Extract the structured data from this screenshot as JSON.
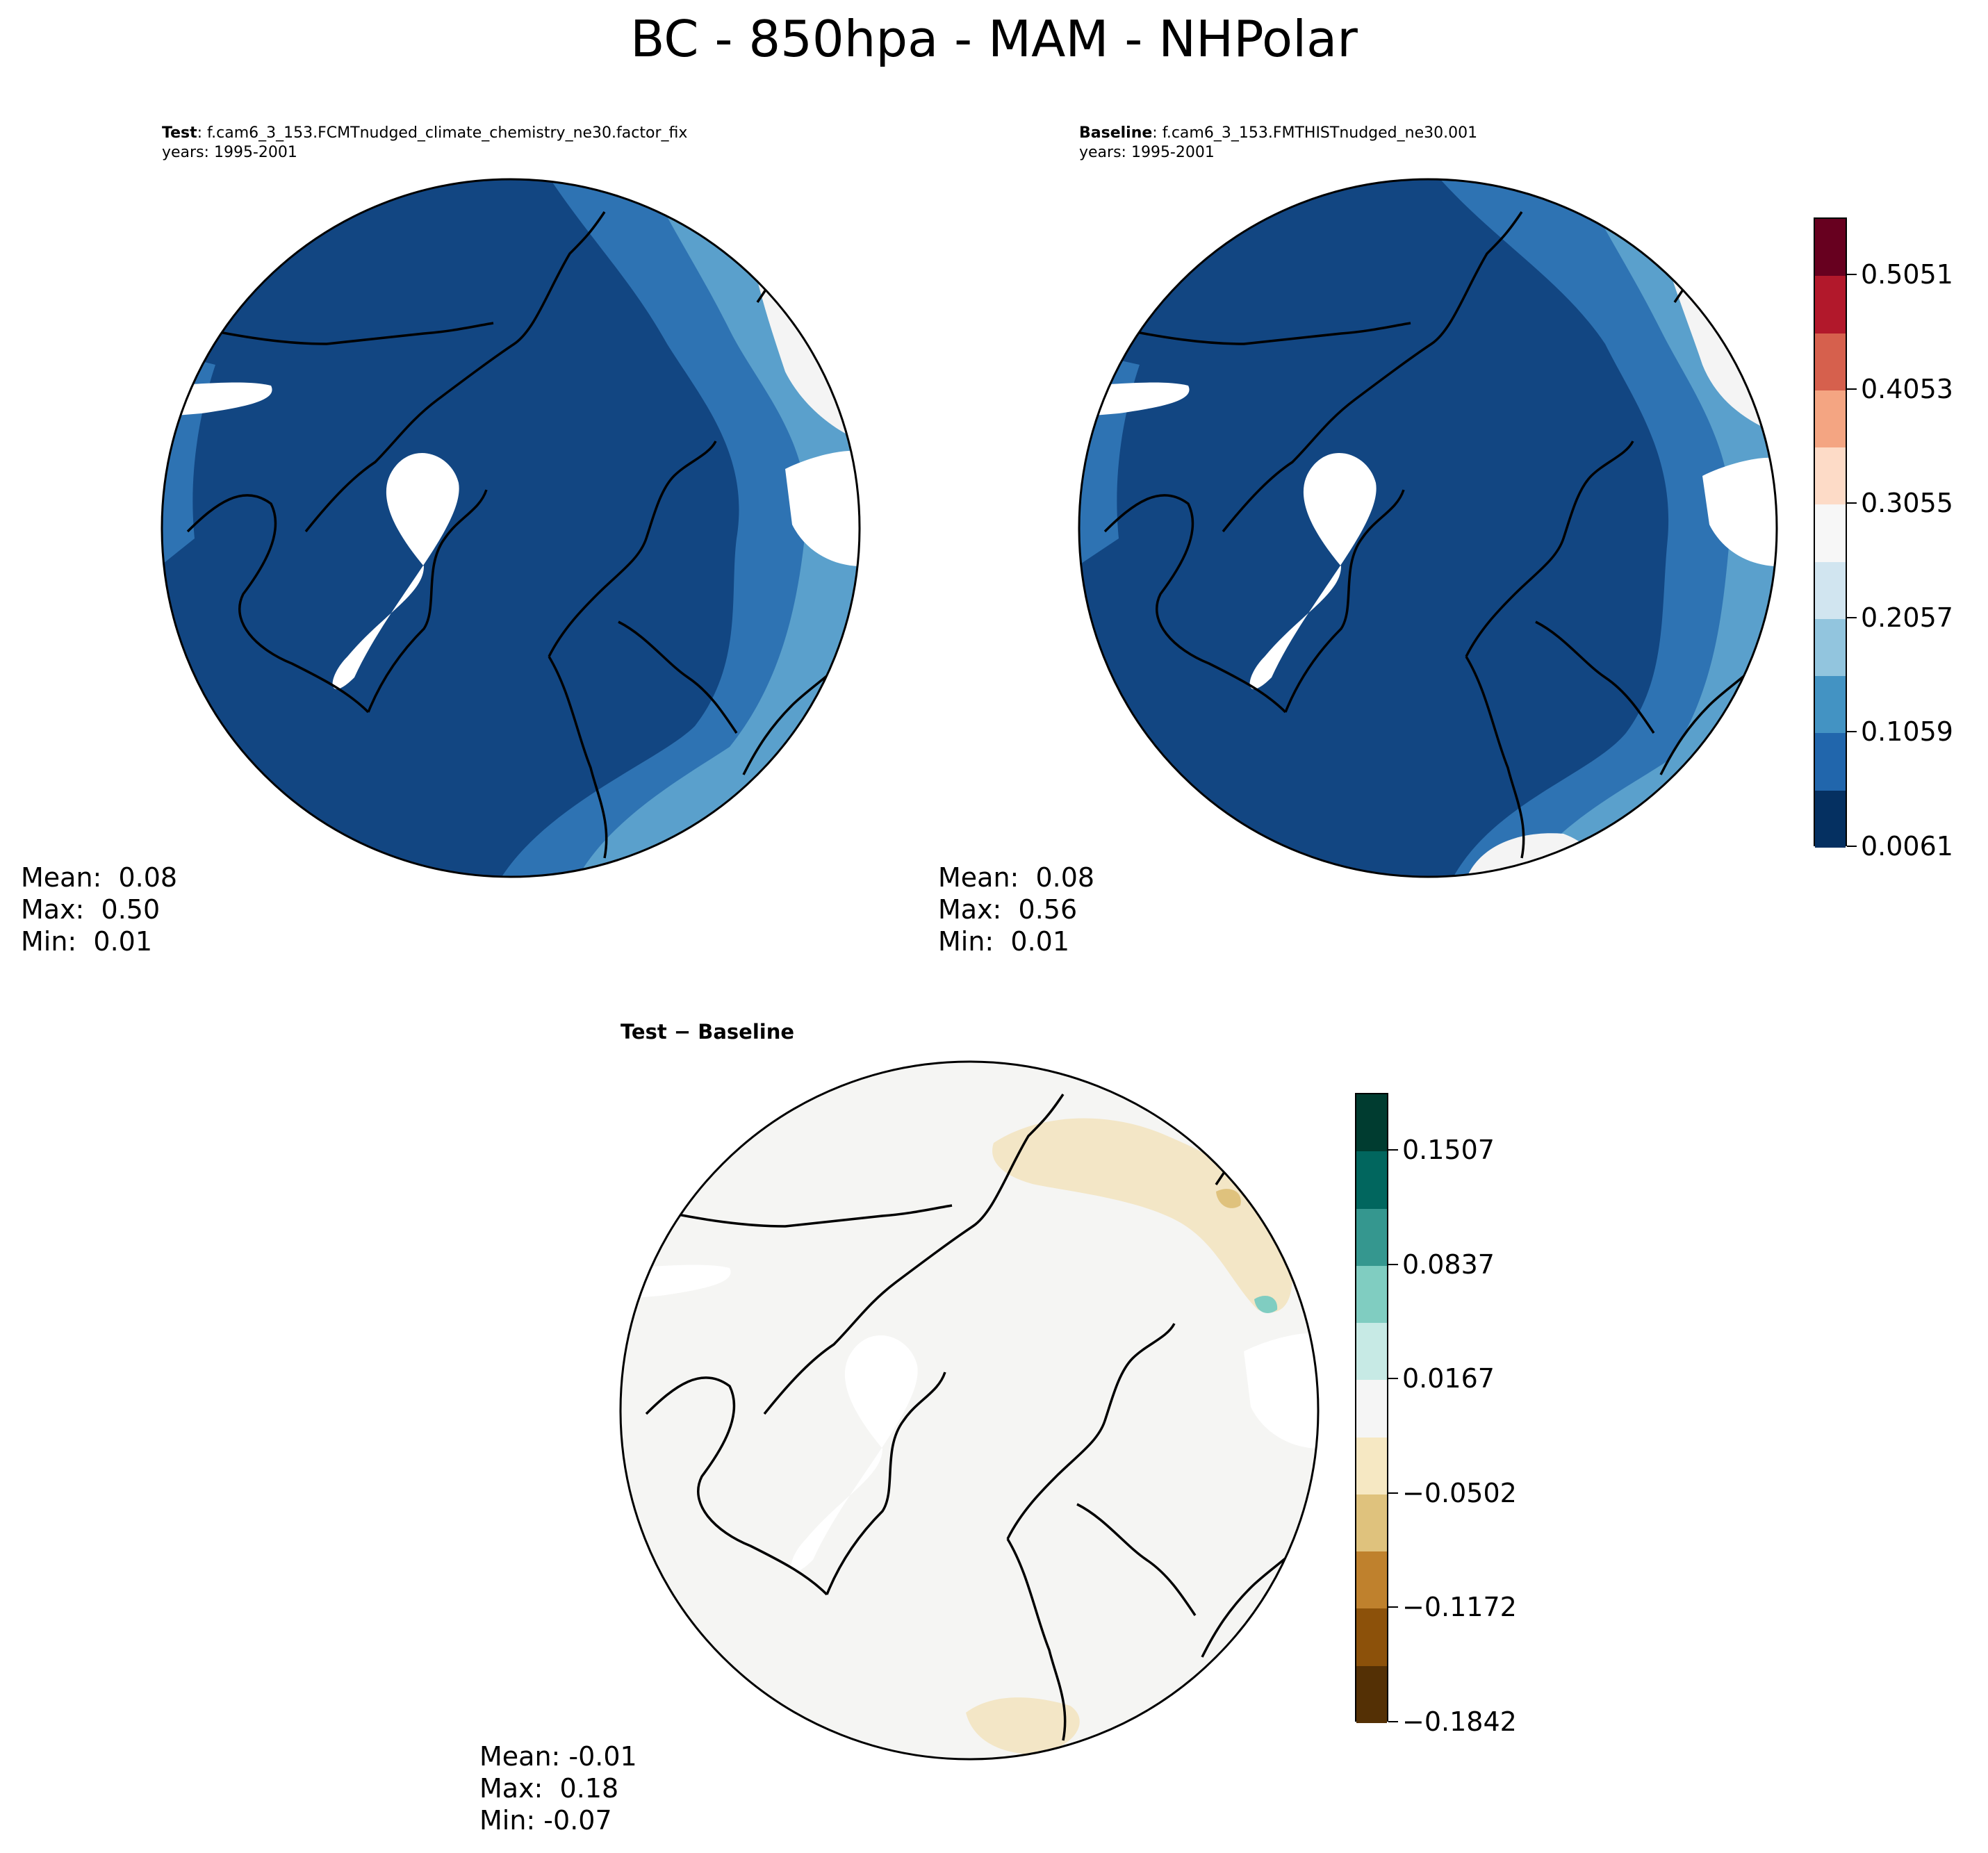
{
  "title": "BC - 850hpa - MAM - NHPolar",
  "panels": [
    {
      "id": "test",
      "header_bold": "Test",
      "header_rest": ": f.cam6_3_153.FCMTnudged_climate_chemistry_ne30.factor_fix",
      "years": "years: 1995-2001",
      "stats": {
        "mean": "Mean:  0.08",
        "max": "Max:  0.50",
        "min": "Min:  0.01"
      }
    },
    {
      "id": "baseline",
      "header_bold": "Baseline",
      "header_rest": ": f.cam6_3_153.FMTHISTnudged_ne30.001",
      "years": "years: 1995-2001",
      "stats": {
        "mean": "Mean:  0.08",
        "max": "Max:  0.56",
        "min": "Min:  0.01"
      }
    },
    {
      "id": "diff",
      "header_bold": "Test − Baseline",
      "stats": {
        "mean": "Mean: -0.01",
        "max": "Max:  0.18",
        "min": "Min: -0.07"
      }
    }
  ],
  "colorbars": {
    "main": {
      "ticks": [
        "0.5051",
        "0.4053",
        "0.3055",
        "0.2057",
        "0.1059",
        "0.0061"
      ],
      "colors": [
        "#67001f",
        "#b2182b",
        "#d6604d",
        "#f4a582",
        "#fddbc7",
        "#f7f7f7",
        "#d1e5f0",
        "#92c5de",
        "#4393c3",
        "#2166ac",
        "#053061"
      ]
    },
    "diff": {
      "ticks": [
        "0.1507",
        "0.0837",
        "0.0167",
        "−0.0502",
        "−0.1172",
        "−0.1842"
      ],
      "colors": [
        "#003c30",
        "#01665e",
        "#35978f",
        "#80cdc1",
        "#c7eae5",
        "#f5f5f5",
        "#f6e8c3",
        "#dfc27d",
        "#bf812d",
        "#8c510a",
        "#543005"
      ]
    }
  },
  "palette": {
    "deep_blue": "#124682",
    "mid_blue": "#2e73b3",
    "light_blue": "#5aa0cc",
    "pale_blue": "#a1cbe2",
    "near_white": "#f4f4f4",
    "salmon": "#f2a88a",
    "red": "#b5232d",
    "diff_bg": "#f5f5f3",
    "diff_tan": "#f3e6c6"
  }
}
